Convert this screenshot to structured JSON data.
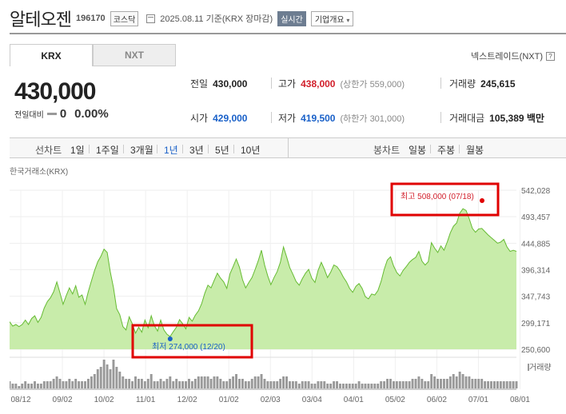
{
  "header": {
    "name": "알테오젠",
    "code": "196170",
    "market": "코스닥",
    "date": "2025.08.11 기준(KRX 장마감)",
    "realtime": "실시간",
    "corp_info": "기업개요"
  },
  "tabs": {
    "krx": "KRX",
    "nxt": "NXT"
  },
  "nxt_link": "넥스트레이드(NXT)",
  "help": "?",
  "price": {
    "current": "430,000",
    "change_label": "전일대비",
    "change_value": "0",
    "change_pct": "0.00%"
  },
  "info": {
    "prev_label": "전일",
    "prev_value": "430,000",
    "high_label": "고가",
    "high_value": "438,000",
    "upper_limit": "(상한가 559,000)",
    "volume_label": "거래량",
    "volume_value": "245,615",
    "open_label": "시가",
    "open_value": "429,000",
    "low_label": "저가",
    "low_value": "419,500",
    "lower_limit": "(하한가 301,000)",
    "amount_label": "거래대금",
    "amount_value": "105,389 백만"
  },
  "period_bar": {
    "line_label": "선차트",
    "periods": [
      "1일",
      "1주일",
      "3개월",
      "1년",
      "3년",
      "5년",
      "10년"
    ],
    "active_index": 3,
    "candle_label": "봉차트",
    "candles": [
      "일봉",
      "주봉",
      "월봉"
    ]
  },
  "chart_data": {
    "type": "area",
    "source_label": "한국거래소(KRX)",
    "y_ticks": [
      542028,
      493457,
      444885,
      396314,
      347743,
      299171,
      250600
    ],
    "x_ticks": [
      "08/12",
      "09/02",
      "10/02",
      "11/01",
      "12/02",
      "01/02",
      "02/03",
      "03/04",
      "04/01",
      "05/02",
      "06/02",
      "07/01",
      "08/01"
    ],
    "ylim": [
      250600,
      542028
    ],
    "high_annotation": "최고 508,000 (07/18)",
    "low_annotation": "최저 274,000 (12/20)",
    "volume_label": "거래량",
    "high": 508000,
    "low": 274000,
    "prices": [
      301000,
      293000,
      296000,
      292000,
      296000,
      304000,
      296000,
      307000,
      312000,
      300000,
      309000,
      326000,
      338000,
      345000,
      356000,
      374000,
      354000,
      333000,
      349000,
      363000,
      352000,
      367000,
      346000,
      350000,
      333000,
      356000,
      376000,
      395000,
      411000,
      421000,
      434000,
      428000,
      392000,
      363000,
      325000,
      314000,
      292000,
      286000,
      310000,
      297000,
      280000,
      291000,
      282000,
      304000,
      290000,
      312000,
      294000,
      284000,
      304000,
      286000,
      278000,
      274000,
      283000,
      291000,
      305000,
      297000,
      288000,
      309000,
      302000,
      313000,
      321000,
      334000,
      353000,
      368000,
      363000,
      377000,
      390000,
      381000,
      374000,
      362000,
      389000,
      402000,
      416000,
      401000,
      378000,
      363000,
      373000,
      382000,
      397000,
      413000,
      432000,
      405000,
      385000,
      369000,
      382000,
      393000,
      410000,
      438000,
      420000,
      400000,
      388000,
      375000,
      368000,
      380000,
      390000,
      397000,
      381000,
      373000,
      395000,
      410000,
      397000,
      382000,
      392000,
      405000,
      402000,
      394000,
      383000,
      374000,
      362000,
      355000,
      366000,
      371000,
      362000,
      347000,
      343000,
      352000,
      350000,
      358000,
      375000,
      397000,
      414000,
      420000,
      403000,
      391000,
      385000,
      395000,
      402000,
      410000,
      415000,
      419000,
      430000,
      412000,
      405000,
      411000,
      446000,
      436000,
      428000,
      440000,
      432000,
      447000,
      464000,
      476000,
      482000,
      500000,
      508000,
      505000,
      490000,
      472000,
      465000,
      471000,
      472000,
      466000,
      460000,
      455000,
      450000,
      445000,
      447000,
      452000,
      438000,
      430000,
      432000,
      430000
    ],
    "volumes": [
      3,
      2,
      2,
      1,
      2,
      3,
      2,
      2,
      3,
      2,
      2,
      3,
      3,
      3,
      4,
      5,
      4,
      3,
      3,
      4,
      3,
      4,
      3,
      3,
      3,
      4,
      5,
      6,
      8,
      9,
      12,
      10,
      8,
      12,
      9,
      7,
      5,
      4,
      4,
      3,
      5,
      4,
      4,
      3,
      4,
      6,
      3,
      3,
      4,
      3,
      4,
      5,
      3,
      4,
      3,
      3,
      3,
      4,
      3,
      4,
      5,
      5,
      5,
      5,
      4,
      5,
      5,
      4,
      3,
      3,
      4,
      5,
      6,
      4,
      4,
      3,
      3,
      4,
      5,
      5,
      6,
      4,
      3,
      3,
      3,
      3,
      4,
      5,
      5,
      3,
      3,
      3,
      2,
      3,
      3,
      3,
      2,
      2,
      3,
      3,
      3,
      2,
      2,
      3,
      3,
      2,
      2,
      2,
      2,
      2,
      2,
      3,
      2,
      2,
      2,
      2,
      2,
      2,
      3,
      3,
      4,
      4,
      3,
      3,
      3,
      3,
      3,
      3,
      4,
      4,
      5,
      4,
      3,
      3,
      6,
      5,
      4,
      4,
      4,
      4,
      5,
      6,
      5,
      7,
      6,
      5,
      5,
      4,
      4,
      4,
      4,
      3,
      3,
      3,
      3,
      3,
      3,
      3,
      3,
      3,
      3,
      3
    ]
  },
  "colors": {
    "up": "#d21f2b",
    "down": "#1960c8",
    "area_fill": "#c8ecaa",
    "area_line": "#66bb33",
    "volume_bar": "#999999"
  }
}
